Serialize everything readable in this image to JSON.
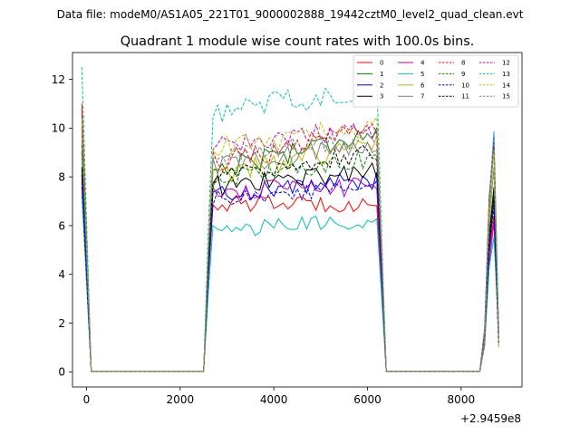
{
  "header": {
    "data_file": "Data file: modeM0/AS1A05_221T01_9000002888_19442cztM0_level2_quad_clean.evt"
  },
  "chart_data": {
    "type": "line",
    "title": "Quadrant 1 module wise count rates with 100.0s bins.",
    "xlabel": "",
    "ylabel": "",
    "x_offset_label": "+2.9459e8",
    "xlim": [
      -300,
      9300
    ],
    "ylim": [
      -0.62,
      13.1
    ],
    "x_ticks": [
      0,
      2000,
      4000,
      6000,
      8000
    ],
    "x_tick_labels": [
      "0",
      "2000",
      "4000",
      "6000",
      "8000"
    ],
    "y_ticks": [
      0,
      2,
      4,
      6,
      8,
      10,
      12
    ],
    "y_tick_labels": [
      "0",
      "2",
      "4",
      "6",
      "8",
      "10",
      "12"
    ],
    "grid": false,
    "legend_position": "top-right",
    "segments": {
      "gap1": [
        100,
        2550
      ],
      "plateau": [
        2600,
        6200
      ],
      "gap2": [
        6400,
        8400
      ]
    },
    "series": [
      {
        "name": "0",
        "color": "#ff0000",
        "dash": "solid",
        "start": 11.0,
        "mid": 6.9,
        "amp": 0.35,
        "slope": 0.0,
        "end": 6.5
      },
      {
        "name": "1",
        "color": "#008000",
        "dash": "solid",
        "start": 10.6,
        "mid": 8.3,
        "amp": 0.5,
        "slope": 1.6,
        "end": 9.5
      },
      {
        "name": "2",
        "color": "#0000ff",
        "dash": "solid",
        "start": 8.1,
        "mid": 7.3,
        "amp": 0.4,
        "slope": 0.6,
        "end": 6.8
      },
      {
        "name": "3",
        "color": "#000000",
        "dash": "solid",
        "start": 8.4,
        "mid": 7.6,
        "amp": 0.45,
        "slope": 0.7,
        "end": 7.4
      },
      {
        "name": "4",
        "color": "#bf00bf",
        "dash": "solid",
        "start": 7.6,
        "mid": 7.4,
        "amp": 0.4,
        "slope": 0.2,
        "end": 6.1
      },
      {
        "name": "5",
        "color": "#00bfbf",
        "dash": "solid",
        "start": 7.3,
        "mid": 5.8,
        "amp": 0.35,
        "slope": 0.4,
        "end": 5.6
      },
      {
        "name": "6",
        "color": "#bfbf00",
        "dash": "solid",
        "start": 9.5,
        "mid": 8.0,
        "amp": 0.45,
        "slope": 1.4,
        "end": 8.6
      },
      {
        "name": "7",
        "color": "#808080",
        "dash": "solid",
        "start": 10.2,
        "mid": 8.4,
        "amp": 0.4,
        "slope": 1.0,
        "end": 8.9
      },
      {
        "name": "8",
        "color": "#ff0000",
        "dash": "dashed",
        "start": 10.8,
        "mid": 8.6,
        "amp": 0.45,
        "slope": 1.3,
        "end": 9.3
      },
      {
        "name": "9",
        "color": "#008000",
        "dash": "dashed",
        "start": 9.0,
        "mid": 7.9,
        "amp": 0.4,
        "slope": 0.9,
        "end": 7.2
      },
      {
        "name": "10",
        "color": "#0000ff",
        "dash": "dashed",
        "start": 7.8,
        "mid": 7.1,
        "amp": 0.35,
        "slope": 0.5,
        "end": 6.8
      },
      {
        "name": "11",
        "color": "#000000",
        "dash": "dashed",
        "start": 9.3,
        "mid": 8.0,
        "amp": 0.4,
        "slope": 1.0,
        "end": 7.4
      },
      {
        "name": "12",
        "color": "#bf00bf",
        "dash": "dashed",
        "start": 10.0,
        "mid": 9.3,
        "amp": 0.4,
        "slope": 0.7,
        "end": 9.5
      },
      {
        "name": "13",
        "color": "#00bfbf",
        "dash": "dashed",
        "start": 12.5,
        "mid": 10.6,
        "amp": 0.5,
        "slope": 1.1,
        "end": 9.7
      },
      {
        "name": "14",
        "color": "#bfbf00",
        "dash": "dashed",
        "start": 10.4,
        "mid": 9.2,
        "amp": 0.45,
        "slope": 0.9,
        "end": 9.0
      },
      {
        "name": "15",
        "color": "#808080",
        "dash": "dashed",
        "start": 9.7,
        "mid": 8.8,
        "amp": 0.4,
        "slope": 0.8,
        "end": 8.4
      }
    ]
  }
}
